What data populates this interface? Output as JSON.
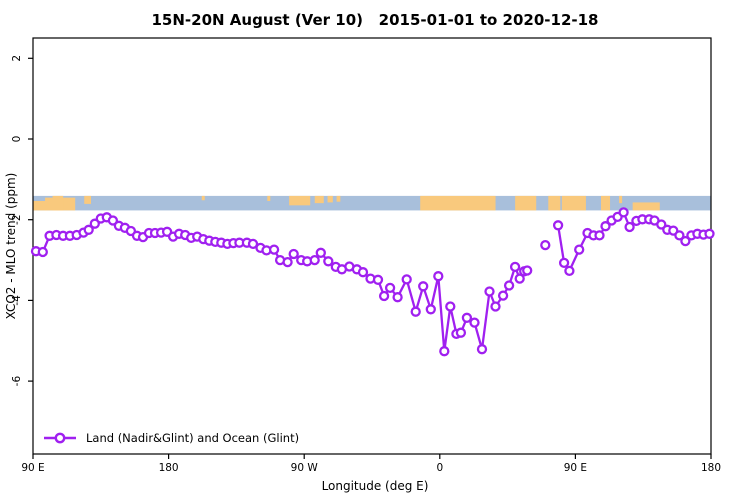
{
  "title": "15N-20N August (Ver 10)   2015-01-01 to 2020-12-18",
  "chart_data": {
    "type": "line",
    "title": "15N-20N August (Ver 10)   2015-01-01 to 2020-12-18",
    "xlabel": "Longitude (deg E)",
    "ylabel": "XCO2 - MLO trend (ppm)",
    "xlim": [
      90,
      540
    ],
    "ylim": [
      -7.8,
      2.5
    ],
    "grid": false,
    "x_ticks": [
      {
        "lon": 90,
        "label": "90 E"
      },
      {
        "lon": 180,
        "label": "180"
      },
      {
        "lon": 270,
        "label": "90 W"
      },
      {
        "lon": 360,
        "label": "0"
      },
      {
        "lon": 450,
        "label": "90 E"
      },
      {
        "lon": 540,
        "label": "180"
      }
    ],
    "y_ticks": [
      {
        "value": 2,
        "label": "2"
      },
      {
        "value": 0,
        "label": "0"
      },
      {
        "value": -2,
        "label": "-2"
      },
      {
        "value": -4,
        "label": "-4"
      },
      {
        "value": -6,
        "label": "-6"
      }
    ],
    "legend": {
      "label": "Land (Nadir&Glint) and Ocean (Glint)",
      "position": "bottom-left"
    },
    "series": [
      {
        "name": "Land (Nadir&Glint) and Ocean (Glint)",
        "color": "#A020F0",
        "marker": "open-circle",
        "segments": [
          [
            [
              92,
              -2.78
            ],
            [
              96.5,
              -2.8
            ],
            [
              101,
              -2.4
            ],
            [
              105.5,
              -2.38
            ],
            [
              110,
              -2.4
            ],
            [
              114.5,
              -2.4
            ],
            [
              119,
              -2.38
            ],
            [
              123.5,
              -2.32
            ],
            [
              127,
              -2.25
            ],
            [
              131,
              -2.1
            ],
            [
              135,
              -1.97
            ],
            [
              139,
              -1.94
            ],
            [
              143,
              -2.02
            ],
            [
              147,
              -2.15
            ],
            [
              151,
              -2.2
            ],
            [
              155,
              -2.28
            ],
            [
              159,
              -2.4
            ],
            [
              163,
              -2.43
            ],
            [
              167,
              -2.33
            ],
            [
              171,
              -2.33
            ],
            [
              175,
              -2.32
            ],
            [
              179,
              -2.3
            ],
            [
              183,
              -2.42
            ],
            [
              187,
              -2.35
            ],
            [
              191,
              -2.38
            ],
            [
              195,
              -2.45
            ],
            [
              199,
              -2.42
            ],
            [
              203,
              -2.48
            ],
            [
              207,
              -2.52
            ],
            [
              211,
              -2.55
            ],
            [
              215,
              -2.57
            ],
            [
              219,
              -2.6
            ],
            [
              223,
              -2.58
            ],
            [
              227,
              -2.57
            ],
            [
              232,
              -2.57
            ],
            [
              236,
              -2.6
            ],
            [
              241,
              -2.7
            ],
            [
              245,
              -2.76
            ],
            [
              250,
              -2.74
            ],
            [
              254,
              -3.0
            ],
            [
              259,
              -3.05
            ],
            [
              263,
              -2.85
            ],
            [
              268,
              -3.0
            ],
            [
              272,
              -3.03
            ],
            [
              277,
              -3.0
            ],
            [
              281,
              -2.82
            ],
            [
              286,
              -3.03
            ],
            [
              291,
              -3.17
            ],
            [
              295,
              -3.23
            ],
            [
              300,
              -3.16
            ],
            [
              305,
              -3.23
            ],
            [
              309,
              -3.3
            ],
            [
              314,
              -3.46
            ],
            [
              319,
              -3.49
            ],
            [
              323,
              -3.89
            ],
            [
              327,
              -3.69
            ],
            [
              332,
              -3.92
            ],
            [
              338,
              -3.48
            ],
            [
              344,
              -4.28
            ],
            [
              349,
              -3.65
            ],
            [
              354,
              -4.22
            ],
            [
              359,
              -3.4
            ],
            [
              363,
              -5.26
            ],
            [
              367,
              -4.15
            ],
            [
              371,
              -4.83
            ],
            [
              374,
              -4.8
            ],
            [
              378,
              -4.43
            ],
            [
              383,
              -4.55
            ],
            [
              388,
              -5.21
            ],
            [
              393,
              -3.78
            ],
            [
              397,
              -4.15
            ],
            [
              402,
              -3.88
            ],
            [
              406,
              -3.63
            ],
            [
              410,
              -3.17
            ],
            [
              413,
              -3.46
            ],
            [
              416,
              -3.28
            ],
            [
              418,
              -3.26
            ]
          ],
          [
            [
              430,
              -2.63
            ]
          ],
          [
            [
              438.5,
              -2.14
            ],
            [
              442.5,
              -3.07
            ],
            [
              446,
              -3.27
            ],
            [
              452.5,
              -2.74
            ],
            [
              458,
              -2.33
            ],
            [
              462,
              -2.39
            ],
            [
              466,
              -2.39
            ],
            [
              470,
              -2.16
            ],
            [
              474,
              -2.02
            ],
            [
              478,
              -1.93
            ],
            [
              482,
              -1.82
            ],
            [
              486,
              -2.18
            ],
            [
              490.5,
              -2.03
            ],
            [
              494.5,
              -1.99
            ],
            [
              499,
              -1.99
            ],
            [
              502.5,
              -2.02
            ],
            [
              507,
              -2.12
            ],
            [
              511,
              -2.25
            ],
            [
              515,
              -2.27
            ],
            [
              519,
              -2.39
            ],
            [
              523,
              -2.53
            ],
            [
              527,
              -2.39
            ],
            [
              531,
              -2.35
            ],
            [
              535,
              -2.37
            ],
            [
              539,
              -2.35
            ]
          ]
        ]
      }
    ],
    "map_band": {
      "description": "ocean-land strip for 15N-20N",
      "ocean_color": "#a8bfdb",
      "land_color": "#f9c97d",
      "value_top": -1.41,
      "value_bottom": -1.77,
      "land_patches": [
        [
          90,
          99,
          0.35,
          1
        ],
        [
          98,
          118,
          0.12,
          1
        ],
        [
          103,
          110,
          0,
          1
        ],
        [
          124,
          128.5,
          0,
          0.55
        ],
        [
          202,
          204,
          0,
          0.3
        ],
        [
          245.5,
          247.5,
          0,
          0.35
        ],
        [
          260,
          274,
          0,
          0.65
        ],
        [
          277,
          283,
          0,
          0.5
        ],
        [
          285.5,
          289,
          0,
          0.45
        ],
        [
          291.5,
          294,
          0,
          0.4
        ],
        [
          347,
          397,
          0,
          1
        ],
        [
          410,
          424,
          0,
          1
        ],
        [
          432,
          440,
          0,
          1
        ],
        [
          441,
          457,
          0,
          1
        ],
        [
          467,
          473,
          0,
          1
        ],
        [
          479,
          481,
          0,
          0.5
        ],
        [
          488,
          506,
          0.45,
          1
        ]
      ]
    }
  }
}
